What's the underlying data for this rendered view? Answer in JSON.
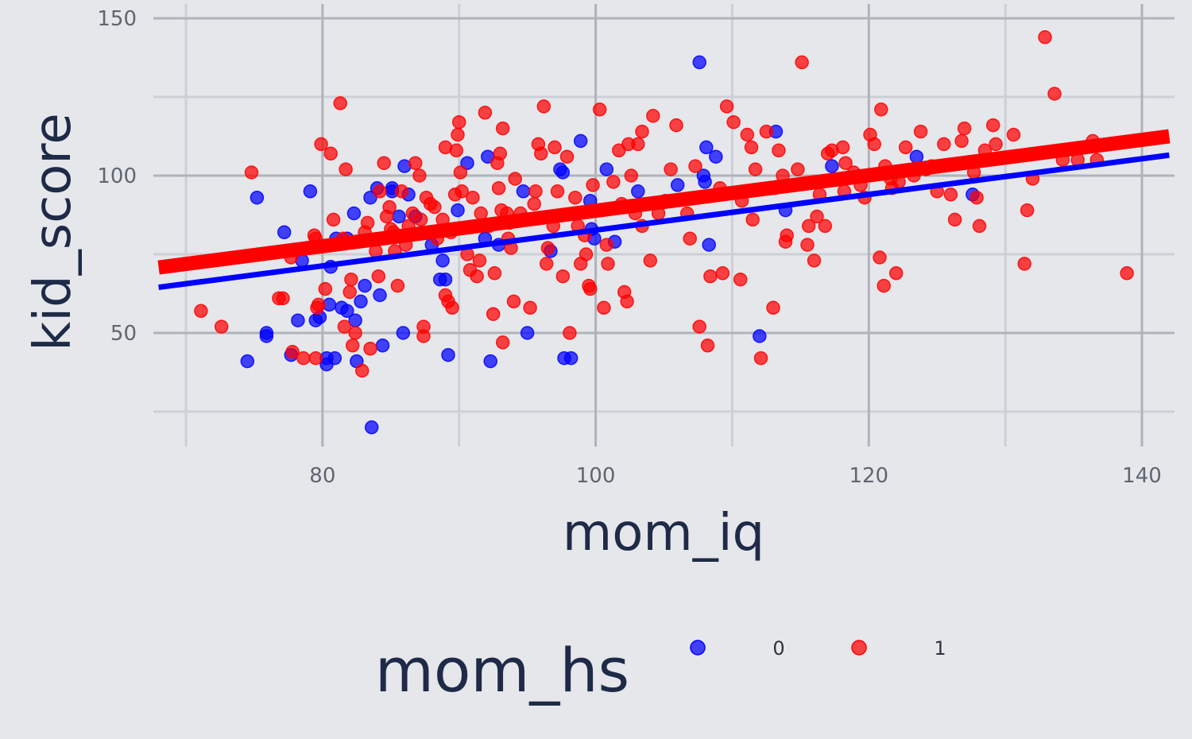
{
  "chart_data": {
    "type": "scatter",
    "title": "",
    "xlabel": "mom_iq",
    "ylabel": "kid_score",
    "xlim": [
      68,
      142
    ],
    "ylim": [
      10,
      150
    ],
    "xticks": [
      80,
      100,
      120,
      140
    ],
    "yticks": [
      50,
      100,
      150
    ],
    "grid": true,
    "legend": {
      "title": "mom_hs",
      "placement": "bottom",
      "entries": [
        "0",
        "1"
      ]
    },
    "series": [
      {
        "name": "0",
        "color": "#0000ff",
        "points": [
          [
            74.5,
            41
          ],
          [
            75.2,
            93
          ],
          [
            75.9,
            50
          ],
          [
            75.9,
            49
          ],
          [
            77.2,
            82
          ],
          [
            77.7,
            43
          ],
          [
            78.2,
            54
          ],
          [
            78.5,
            73
          ],
          [
            79.1,
            95
          ],
          [
            79.5,
            54
          ],
          [
            79.8,
            55
          ],
          [
            80.3,
            40
          ],
          [
            80.3,
            42
          ],
          [
            80.5,
            59
          ],
          [
            80.6,
            71
          ],
          [
            80.9,
            42
          ],
          [
            81.0,
            80
          ],
          [
            81.4,
            58
          ],
          [
            81.8,
            57
          ],
          [
            81.8,
            80
          ],
          [
            82.3,
            88
          ],
          [
            82.4,
            54
          ],
          [
            82.5,
            41
          ],
          [
            82.8,
            60
          ],
          [
            83.1,
            65
          ],
          [
            83.5,
            93
          ],
          [
            84.0,
            96
          ],
          [
            83.6,
            20
          ],
          [
            84.2,
            62
          ],
          [
            84.4,
            46
          ],
          [
            85.1,
            95
          ],
          [
            85.1,
            96
          ],
          [
            85.6,
            87
          ],
          [
            85.9,
            50
          ],
          [
            86.0,
            103
          ],
          [
            86.3,
            94
          ],
          [
            86.8,
            87
          ],
          [
            88.0,
            78
          ],
          [
            88.6,
            67
          ],
          [
            88.8,
            73
          ],
          [
            89.0,
            67
          ],
          [
            89.2,
            43
          ],
          [
            89.9,
            89
          ],
          [
            90.6,
            104
          ],
          [
            91.9,
            80
          ],
          [
            92.1,
            106
          ],
          [
            92.3,
            41
          ],
          [
            92.9,
            78
          ],
          [
            94.7,
            95
          ],
          [
            95.0,
            50
          ],
          [
            96.7,
            76
          ],
          [
            97.4,
            102
          ],
          [
            97.6,
            101
          ],
          [
            97.7,
            42
          ],
          [
            98.2,
            42
          ],
          [
            98.9,
            111
          ],
          [
            99.6,
            92
          ],
          [
            99.7,
            83
          ],
          [
            99.9,
            80
          ],
          [
            100.8,
            102
          ],
          [
            101.4,
            79
          ],
          [
            103.1,
            95
          ],
          [
            106.0,
            97
          ],
          [
            107.6,
            136
          ],
          [
            107.9,
            100
          ],
          [
            108.0,
            98
          ],
          [
            108.1,
            109
          ],
          [
            108.3,
            78
          ],
          [
            108.8,
            106
          ],
          [
            112.0,
            49
          ],
          [
            113.2,
            114
          ],
          [
            113.9,
            89
          ],
          [
            117.3,
            103
          ],
          [
            123.5,
            106
          ],
          [
            127.6,
            94
          ]
        ]
      },
      {
        "name": "1",
        "color": "#ff0000",
        "points": [
          [
            71.1,
            57
          ],
          [
            72.6,
            52
          ],
          [
            74.8,
            101
          ],
          [
            76.8,
            61
          ],
          [
            77.1,
            61
          ],
          [
            77.7,
            74
          ],
          [
            77.8,
            44
          ],
          [
            78.6,
            42
          ],
          [
            79.4,
            81
          ],
          [
            79.5,
            80
          ],
          [
            79.5,
            42
          ],
          [
            79.6,
            58
          ],
          [
            79.7,
            59
          ],
          [
            79.9,
            110
          ],
          [
            80.2,
            64
          ],
          [
            80.6,
            107
          ],
          [
            80.8,
            86
          ],
          [
            81.3,
            123
          ],
          [
            81.7,
            102
          ],
          [
            81.5,
            80
          ],
          [
            81.6,
            52
          ],
          [
            82.1,
            67
          ],
          [
            82.0,
            63
          ],
          [
            82.2,
            46
          ],
          [
            82.4,
            50
          ],
          [
            82.9,
            38
          ],
          [
            83.3,
            85
          ],
          [
            83.5,
            45
          ],
          [
            83.9,
            76
          ],
          [
            84.1,
            68
          ],
          [
            84.2,
            95
          ],
          [
            84.5,
            104
          ],
          [
            84.9,
            90
          ],
          [
            85.0,
            83
          ],
          [
            85.2,
            82
          ],
          [
            85.3,
            76
          ],
          [
            85.5,
            65
          ],
          [
            85.8,
            95
          ],
          [
            86.3,
            84
          ],
          [
            86.6,
            88
          ],
          [
            86.8,
            104
          ],
          [
            87.1,
            100
          ],
          [
            87.2,
            86
          ],
          [
            87.4,
            52
          ],
          [
            87.4,
            49
          ],
          [
            87.6,
            93
          ],
          [
            87.9,
            91
          ],
          [
            88.4,
            80
          ],
          [
            88.8,
            86
          ],
          [
            89.0,
            109
          ],
          [
            89.0,
            62
          ],
          [
            89.2,
            60
          ],
          [
            89.5,
            58
          ],
          [
            89.7,
            94
          ],
          [
            89.8,
            108
          ],
          [
            89.9,
            113
          ],
          [
            90.0,
            117
          ],
          [
            90.1,
            101
          ],
          [
            90.2,
            95
          ],
          [
            90.6,
            75
          ],
          [
            90.8,
            70
          ],
          [
            91.3,
            68
          ],
          [
            91.5,
            73
          ],
          [
            91.6,
            88
          ],
          [
            91.9,
            120
          ],
          [
            92.2,
            84
          ],
          [
            92.5,
            56
          ],
          [
            92.6,
            69
          ],
          [
            92.8,
            104
          ],
          [
            92.9,
            96
          ],
          [
            93.0,
            107
          ],
          [
            93.1,
            89
          ],
          [
            93.2,
            115
          ],
          [
            93.2,
            47
          ],
          [
            93.5,
            88
          ],
          [
            93.6,
            80
          ],
          [
            93.8,
            77
          ],
          [
            94.1,
            99
          ],
          [
            94.5,
            88
          ],
          [
            95.2,
            58
          ],
          [
            95.6,
            95
          ],
          [
            95.8,
            110
          ],
          [
            96.0,
            107
          ],
          [
            96.2,
            122
          ],
          [
            96.5,
            77
          ],
          [
            96.9,
            84
          ],
          [
            97.0,
            109
          ],
          [
            97.2,
            95
          ],
          [
            97.6,
            68
          ],
          [
            97.9,
            106
          ],
          [
            98.1,
            50
          ],
          [
            98.5,
            93
          ],
          [
            98.9,
            72
          ],
          [
            99.3,
            75
          ],
          [
            99.5,
            65
          ],
          [
            99.6,
            64
          ],
          [
            99.8,
            97
          ],
          [
            100.1,
            89
          ],
          [
            100.3,
            121
          ],
          [
            100.6,
            58
          ],
          [
            100.9,
            72
          ],
          [
            101.3,
            98
          ],
          [
            101.7,
            108
          ],
          [
            101.9,
            91
          ],
          [
            102.1,
            63
          ],
          [
            102.3,
            60
          ],
          [
            102.4,
            110
          ],
          [
            102.6,
            100
          ],
          [
            102.9,
            88
          ],
          [
            103.1,
            110
          ],
          [
            103.4,
            114
          ],
          [
            103.6,
            91
          ],
          [
            104.0,
            73
          ],
          [
            104.2,
            119
          ],
          [
            105.5,
            102
          ],
          [
            105.9,
            116
          ],
          [
            106.7,
            88
          ],
          [
            107.3,
            103
          ],
          [
            107.6,
            52
          ],
          [
            108.2,
            46
          ],
          [
            108.4,
            68
          ],
          [
            109.3,
            69
          ],
          [
            109.6,
            122
          ],
          [
            110.1,
            117
          ],
          [
            110.6,
            67
          ],
          [
            111.1,
            113
          ],
          [
            111.4,
            109
          ],
          [
            111.7,
            102
          ],
          [
            112.1,
            42
          ],
          [
            112.5,
            114
          ],
          [
            113.1,
            96
          ],
          [
            113.4,
            108
          ],
          [
            113.9,
            79
          ],
          [
            114.8,
            102
          ],
          [
            115.1,
            136
          ],
          [
            115.6,
            84
          ],
          [
            116.0,
            73
          ],
          [
            116.2,
            87
          ],
          [
            116.8,
            84
          ],
          [
            117.3,
            108
          ],
          [
            118.1,
            109
          ],
          [
            118.2,
            95
          ],
          [
            118.3,
            104
          ],
          [
            119.7,
            93
          ],
          [
            120.1,
            113
          ],
          [
            120.4,
            110
          ],
          [
            120.8,
            74
          ],
          [
            120.9,
            121
          ],
          [
            121.1,
            65
          ],
          [
            121.6,
            99
          ],
          [
            122.0,
            69
          ],
          [
            122.2,
            98
          ],
          [
            122.7,
            109
          ],
          [
            123.3,
            100
          ],
          [
            123.8,
            114
          ],
          [
            124.6,
            103
          ],
          [
            125.0,
            95
          ],
          [
            125.5,
            110
          ],
          [
            126.0,
            94
          ],
          [
            126.8,
            111
          ],
          [
            127.0,
            115
          ],
          [
            127.7,
            101
          ],
          [
            127.9,
            93
          ],
          [
            128.5,
            108
          ],
          [
            129.1,
            116
          ],
          [
            129.3,
            110
          ],
          [
            130.6,
            113
          ],
          [
            131.4,
            72
          ],
          [
            132.0,
            99
          ],
          [
            132.9,
            144
          ],
          [
            133.6,
            126
          ],
          [
            134.2,
            105
          ],
          [
            135.3,
            105
          ],
          [
            136.4,
            111
          ],
          [
            136.7,
            105
          ],
          [
            138.9,
            69
          ],
          [
            121.2,
            103
          ],
          [
            117.0,
            107
          ],
          [
            113.0,
            58
          ],
          [
            115.5,
            78
          ],
          [
            114.0,
            81
          ],
          [
            119.4,
            97
          ],
          [
            110.7,
            92
          ],
          [
            104.6,
            88
          ],
          [
            99.2,
            81
          ],
          [
            97.0,
            87
          ],
          [
            95.5,
            91
          ],
          [
            93.7,
            85
          ],
          [
            91.0,
            93
          ],
          [
            89.4,
            82
          ],
          [
            88.2,
            90
          ],
          [
            86.1,
            78
          ],
          [
            84.7,
            87
          ],
          [
            83.1,
            82
          ],
          [
            94.0,
            60
          ],
          [
            96.4,
            72
          ],
          [
            98.7,
            84
          ],
          [
            100.8,
            78
          ],
          [
            103.4,
            84
          ],
          [
            105.1,
            92
          ],
          [
            106.9,
            80
          ],
          [
            109.1,
            96
          ],
          [
            111.5,
            86
          ],
          [
            113.7,
            100
          ],
          [
            116.4,
            94
          ],
          [
            118.9,
            101
          ],
          [
            121.7,
            96
          ],
          [
            124.2,
            102
          ],
          [
            126.3,
            86
          ],
          [
            128.1,
            84
          ],
          [
            131.6,
            89
          ]
        ]
      }
    ],
    "fit_lines": [
      {
        "series": "0",
        "x": [
          68,
          142
        ],
        "y": [
          64.5,
          106.5
        ]
      },
      {
        "series": "1",
        "x": [
          68,
          142
        ],
        "y": [
          70.8,
          112.5
        ]
      }
    ]
  }
}
